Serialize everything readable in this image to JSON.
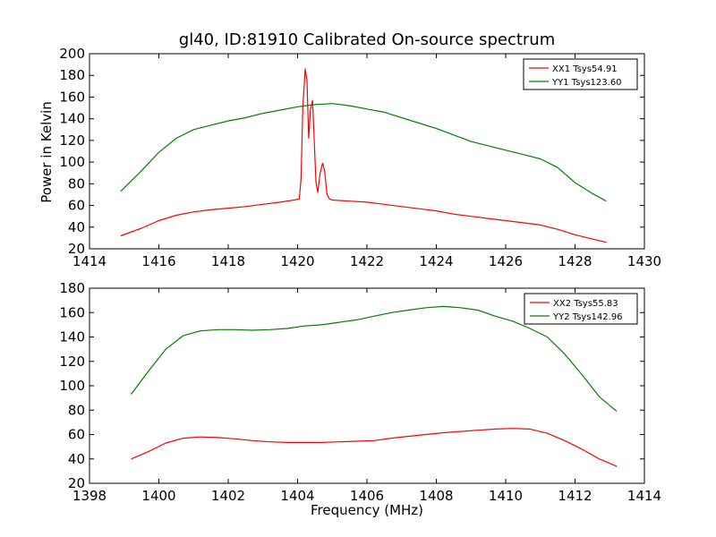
{
  "figure": {
    "title": "gl40, ID:81910 Calibrated On-source spectrum",
    "ylabel": "Power in Kelvin",
    "xlabel": "Frequency (MHz)"
  },
  "chart_data": [
    {
      "type": "line",
      "title": "gl40, ID:81910 Calibrated On-source spectrum",
      "xlabel": "",
      "ylabel": "Power in Kelvin",
      "xlim": [
        1414,
        1430
      ],
      "ylim": [
        20,
        200
      ],
      "xticks": [
        1414,
        1416,
        1418,
        1420,
        1422,
        1424,
        1426,
        1428,
        1430
      ],
      "yticks": [
        20,
        40,
        60,
        80,
        100,
        120,
        140,
        160,
        180,
        200
      ],
      "grid": false,
      "legend_position": "top-right",
      "series": [
        {
          "name": "XX1 Tsys54.91",
          "color": "#ff0000",
          "x": [
            1414.9,
            1415.5,
            1416.0,
            1416.5,
            1417.0,
            1417.5,
            1418.0,
            1418.5,
            1419.0,
            1419.5,
            1419.9,
            1420.05,
            1420.1,
            1420.15,
            1420.22,
            1420.27,
            1420.32,
            1420.37,
            1420.43,
            1420.48,
            1420.53,
            1420.58,
            1420.65,
            1420.72,
            1420.78,
            1420.85,
            1420.92,
            1421.0,
            1421.5,
            1422.0,
            1422.5,
            1423.0,
            1423.5,
            1424.0,
            1424.5,
            1425.0,
            1425.5,
            1426.0,
            1426.5,
            1427.0,
            1427.5,
            1428.0,
            1428.5,
            1428.9
          ],
          "y": [
            32,
            39,
            46,
            51,
            54,
            56,
            57.5,
            59,
            61,
            63,
            65,
            66,
            85,
            150,
            186,
            175,
            122,
            148,
            157,
            120,
            82,
            72,
            90,
            99,
            92,
            70,
            66,
            65,
            64,
            63,
            61,
            59,
            57,
            55,
            52,
            50,
            48,
            46,
            44,
            42,
            38,
            33,
            29,
            26
          ]
        },
        {
          "name": "YY1 Tsys123.60",
          "color": "#008000",
          "x": [
            1414.9,
            1415.5,
            1416.0,
            1416.5,
            1417.0,
            1417.5,
            1418.0,
            1418.5,
            1419.0,
            1419.5,
            1420.0,
            1420.5,
            1421.0,
            1421.5,
            1422.0,
            1422.5,
            1423.0,
            1423.5,
            1424.0,
            1424.5,
            1425.0,
            1425.5,
            1426.0,
            1426.5,
            1427.0,
            1427.5,
            1428.0,
            1428.5,
            1428.9
          ],
          "y": [
            73,
            92,
            109,
            122,
            130,
            134,
            138,
            141,
            145,
            148,
            151,
            153,
            154,
            152,
            149,
            146,
            141,
            136,
            131,
            125,
            119,
            115,
            111,
            107,
            103,
            95,
            81,
            71,
            64
          ]
        }
      ]
    },
    {
      "type": "line",
      "title": "",
      "xlabel": "Frequency (MHz)",
      "ylabel": "",
      "xlim": [
        1398,
        1414
      ],
      "ylim": [
        20,
        180
      ],
      "xticks": [
        1398,
        1400,
        1402,
        1404,
        1406,
        1408,
        1410,
        1412,
        1414
      ],
      "yticks": [
        20,
        40,
        60,
        80,
        100,
        120,
        140,
        160,
        180
      ],
      "grid": false,
      "legend_position": "top-right",
      "series": [
        {
          "name": "XX2 Tsys55.83",
          "color": "#ff0000",
          "x": [
            1399.2,
            1399.7,
            1400.2,
            1400.7,
            1401.2,
            1401.7,
            1402.2,
            1402.7,
            1403.2,
            1403.7,
            1404.2,
            1404.7,
            1405.2,
            1405.7,
            1406.2,
            1406.7,
            1407.2,
            1407.7,
            1408.2,
            1408.7,
            1409.2,
            1409.7,
            1410.2,
            1410.7,
            1411.2,
            1411.7,
            1412.2,
            1412.7,
            1413.2
          ],
          "y": [
            40,
            46,
            53,
            57,
            58,
            57.5,
            56.5,
            55,
            54,
            53.5,
            53.5,
            53.5,
            54,
            54.5,
            55,
            57,
            58.5,
            60,
            61.5,
            62.5,
            63.5,
            64.5,
            65,
            64.5,
            61,
            55,
            48,
            40,
            34
          ]
        },
        {
          "name": "YY2 Tsys142.96",
          "color": "#008000",
          "x": [
            1399.2,
            1399.7,
            1400.2,
            1400.7,
            1401.2,
            1401.7,
            1402.2,
            1402.7,
            1403.2,
            1403.7,
            1404.2,
            1404.7,
            1405.2,
            1405.7,
            1406.2,
            1406.7,
            1407.2,
            1407.7,
            1408.2,
            1408.7,
            1409.2,
            1409.7,
            1410.2,
            1410.7,
            1411.2,
            1411.7,
            1412.2,
            1412.7,
            1413.2
          ],
          "y": [
            93,
            112,
            130,
            141,
            145,
            146,
            146,
            145.5,
            146,
            147,
            149,
            150,
            152,
            154,
            157,
            160,
            162,
            164,
            165,
            164,
            162,
            157,
            153,
            147,
            140,
            126,
            109,
            91,
            79
          ]
        }
      ]
    }
  ]
}
